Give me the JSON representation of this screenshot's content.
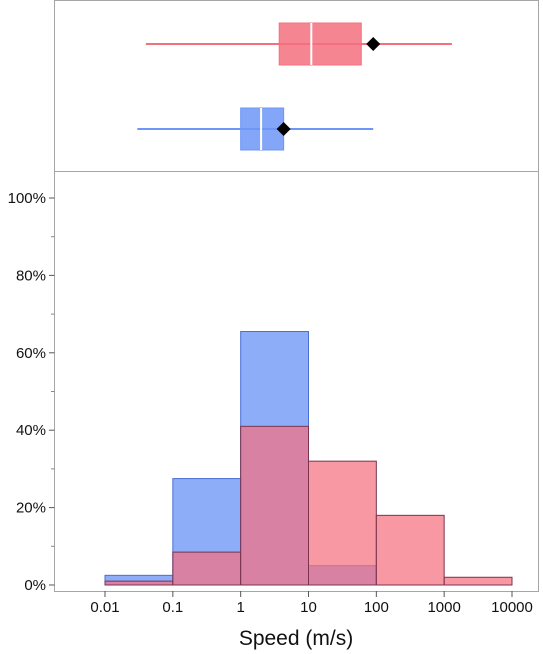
{
  "chart_data": {
    "type": "bar",
    "subtype": "overlaid-histogram-with-boxplots",
    "xlabel": "Speed (m/s)",
    "ylabel": "",
    "x_scale": "log10",
    "x_tick_labels": [
      "0.01",
      "0.1",
      "1",
      "10",
      "100",
      "1000",
      "10000"
    ],
    "x_ticks": [
      0.01,
      0.1,
      1,
      10,
      100,
      1000,
      10000
    ],
    "y_tick_labels": [
      "0%",
      "20%",
      "40%",
      "60%",
      "80%",
      "100%"
    ],
    "y_ticks": [
      0,
      20,
      40,
      60,
      80,
      100
    ],
    "ylim": [
      0,
      100
    ],
    "grid": false,
    "bin_edges": [
      0.01,
      0.1,
      1,
      10,
      100,
      1000,
      10000
    ],
    "series": [
      {
        "key": "blue",
        "color": "#6e96f7",
        "edge_color": "#4a6fd3",
        "percent_values": [
          2.5,
          27.5,
          65.5,
          5,
          0,
          0
        ],
        "boxplot": {
          "whisker_low": 0.03,
          "q1": 1.0,
          "median": 2.0,
          "q3": 4.3,
          "whisker_high": 90,
          "mean": 4.3
        }
      },
      {
        "key": "red",
        "color": "#f5707f",
        "edge_color": "#7a3450",
        "percent_values": [
          1,
          8.5,
          41,
          32,
          18,
          2
        ],
        "boxplot": {
          "whisker_low": 0.04,
          "q1": 3.7,
          "median": 11,
          "q3": 60,
          "whisker_high": 1300,
          "mean": 90
        }
      }
    ]
  }
}
